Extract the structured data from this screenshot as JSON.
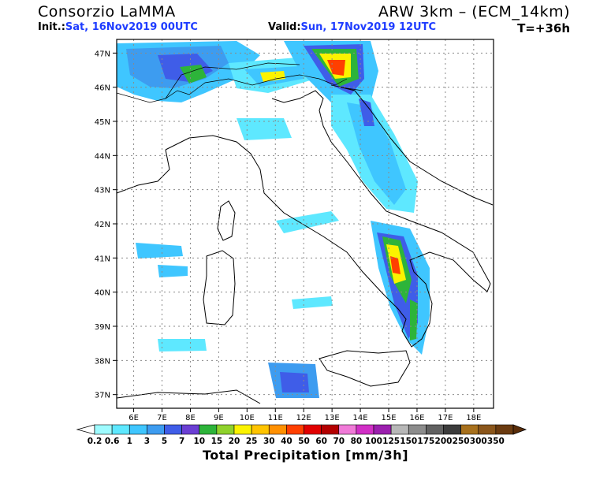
{
  "header": {
    "org": "Consorzio LaMMA",
    "model": "ARW 3km – (ECM_14km)",
    "init_label": "Init.:",
    "init_value": "Sat, 16Nov2019 00UTC",
    "valid_label": "Valid:",
    "valid_value": "Sun, 17Nov2019 12UTC",
    "step": "T=+36h"
  },
  "map": {
    "lat_labels": [
      "47N",
      "46N",
      "45N",
      "44N",
      "43N",
      "42N",
      "41N",
      "40N",
      "39N",
      "38N",
      "37N"
    ],
    "lon_labels": [
      "6E",
      "7E",
      "8E",
      "9E",
      "10E",
      "11E",
      "12E",
      "13E",
      "14E",
      "15E",
      "16E",
      "17E",
      "18E"
    ],
    "lat_values": [
      47,
      46,
      45,
      44,
      43,
      42,
      41,
      40,
      39,
      38,
      37
    ],
    "lon_values": [
      6,
      7,
      8,
      9,
      10,
      11,
      12,
      13,
      14,
      15,
      16,
      17,
      18
    ],
    "lat_range": [
      36.6,
      47.4
    ],
    "lon_range": [
      5.4,
      18.7
    ]
  },
  "legend": {
    "title": "Total Precipitation [mm/3h]",
    "levels": [
      "0.2",
      "0.6",
      "1",
      "3",
      "5",
      "7",
      "10",
      "15",
      "20",
      "25",
      "30",
      "40",
      "50",
      "60",
      "70",
      "80",
      "100",
      "125",
      "150",
      "175",
      "200",
      "250",
      "300",
      "350"
    ],
    "colors": [
      "#9efbff",
      "#5ee8ff",
      "#3fc6ff",
      "#3d9cf0",
      "#3f5de8",
      "#6b3fd4",
      "#2db43a",
      "#8fd22c",
      "#fbf300",
      "#ffc400",
      "#ff9000",
      "#ff3f00",
      "#e10000",
      "#b40000",
      "#f07ad8",
      "#d12fc6",
      "#9b1fae",
      "#b7b7b7",
      "#8c8c8c",
      "#616161",
      "#3c3c3c",
      "#a8711d",
      "#8b561b",
      "#6b3b10"
    ],
    "under_color": "#ffffff",
    "over_color": "#5a2d09"
  }
}
